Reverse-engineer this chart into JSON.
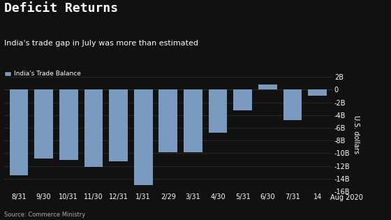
{
  "title": "Deficit Returns",
  "subtitle": "India's trade gap in July was more than estimated",
  "legend_label": "India's Trade Balance",
  "source": "Source: Commerce Ministry",
  "ylabel": "U.S. dollars",
  "xlabel_bottom": "Aug 2020",
  "categories": [
    "8/31",
    "9/30",
    "10/31",
    "11/30",
    "12/31",
    "1/31",
    "2/29",
    "3/31",
    "4/30",
    "5/31",
    "6/30",
    "7/31",
    "14"
  ],
  "values": [
    -13.5,
    -10.8,
    -11.0,
    -12.1,
    -11.3,
    -15.0,
    -9.8,
    -9.8,
    -6.8,
    -3.2,
    0.79,
    -4.8,
    -0.9
  ],
  "bar_color": "#7a9abf",
  "background_color": "#111111",
  "text_color": "#ffffff",
  "grid_color": "#333333",
  "ylim": [
    -16,
    2
  ],
  "yticks": [
    2,
    0,
    -2,
    -4,
    -6,
    -8,
    -10,
    -12,
    -14,
    -16
  ],
  "ytick_labels": [
    "2B",
    "0",
    "-2B",
    "-4B",
    "-6B",
    "-8B",
    "-10B",
    "-12B",
    "-14B",
    "-16B"
  ]
}
